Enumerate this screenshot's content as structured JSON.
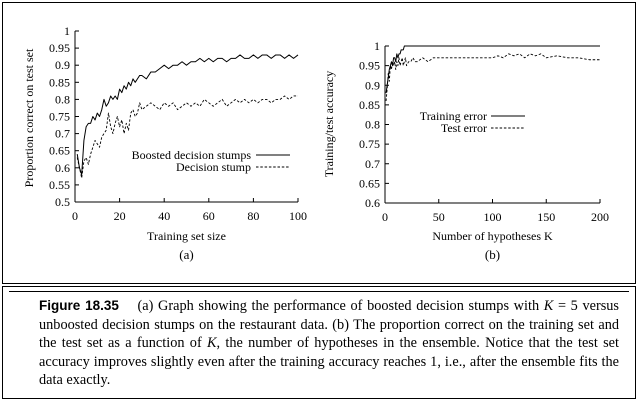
{
  "chart_data": [
    {
      "type": "line",
      "panel": "(a)",
      "xlabel": "Training set size",
      "ylabel": "Proportion correct on test set",
      "xlim": [
        0,
        100
      ],
      "ylim": [
        0.5,
        1.0
      ],
      "xticks": [
        0,
        20,
        40,
        60,
        80,
        100
      ],
      "yticks": [
        0.5,
        0.55,
        0.6,
        0.65,
        0.7,
        0.75,
        0.8,
        0.85,
        0.9,
        0.95,
        1
      ],
      "legend_position": "right-middle",
      "series": [
        {
          "name": "Boosted decision stumps",
          "style": "solid",
          "x": [
            1,
            2,
            3,
            4,
            5,
            6,
            7,
            8,
            9,
            10,
            11,
            12,
            13,
            14,
            15,
            16,
            17,
            18,
            19,
            20,
            21,
            22,
            23,
            24,
            25,
            26,
            27,
            28,
            29,
            30,
            32,
            34,
            36,
            38,
            40,
            42,
            44,
            46,
            48,
            50,
            52,
            54,
            56,
            58,
            60,
            62,
            64,
            66,
            68,
            70,
            72,
            74,
            76,
            78,
            80,
            82,
            84,
            86,
            88,
            90,
            92,
            94,
            96,
            98,
            100
          ],
          "values": [
            0.64,
            0.6,
            0.58,
            0.68,
            0.72,
            0.73,
            0.73,
            0.75,
            0.74,
            0.76,
            0.75,
            0.77,
            0.8,
            0.78,
            0.79,
            0.81,
            0.8,
            0.81,
            0.8,
            0.83,
            0.82,
            0.84,
            0.83,
            0.85,
            0.84,
            0.86,
            0.85,
            0.86,
            0.87,
            0.87,
            0.86,
            0.88,
            0.88,
            0.89,
            0.9,
            0.89,
            0.9,
            0.9,
            0.91,
            0.9,
            0.91,
            0.91,
            0.92,
            0.91,
            0.92,
            0.91,
            0.92,
            0.92,
            0.91,
            0.92,
            0.92,
            0.93,
            0.92,
            0.92,
            0.93,
            0.92,
            0.93,
            0.93,
            0.92,
            0.93,
            0.93,
            0.92,
            0.93,
            0.92,
            0.93
          ]
        },
        {
          "name": "Decision stump",
          "style": "dashed",
          "x": [
            1,
            2,
            3,
            4,
            5,
            6,
            7,
            8,
            9,
            10,
            11,
            12,
            13,
            14,
            15,
            16,
            17,
            18,
            19,
            20,
            21,
            22,
            23,
            24,
            25,
            26,
            27,
            28,
            29,
            30,
            32,
            34,
            36,
            38,
            40,
            42,
            44,
            46,
            48,
            50,
            52,
            54,
            56,
            58,
            60,
            62,
            64,
            66,
            68,
            70,
            72,
            74,
            76,
            78,
            80,
            82,
            84,
            86,
            88,
            90,
            92,
            94,
            96,
            98,
            100
          ],
          "values": [
            0.63,
            0.6,
            0.57,
            0.62,
            0.63,
            0.61,
            0.64,
            0.66,
            0.68,
            0.67,
            0.66,
            0.69,
            0.7,
            0.71,
            0.76,
            0.72,
            0.7,
            0.73,
            0.75,
            0.72,
            0.74,
            0.7,
            0.73,
            0.71,
            0.76,
            0.77,
            0.75,
            0.76,
            0.79,
            0.77,
            0.78,
            0.79,
            0.78,
            0.77,
            0.79,
            0.78,
            0.79,
            0.77,
            0.78,
            0.79,
            0.78,
            0.79,
            0.78,
            0.8,
            0.79,
            0.78,
            0.79,
            0.8,
            0.78,
            0.79,
            0.8,
            0.79,
            0.8,
            0.79,
            0.8,
            0.79,
            0.8,
            0.8,
            0.79,
            0.8,
            0.8,
            0.81,
            0.8,
            0.81,
            0.81
          ]
        }
      ]
    },
    {
      "type": "line",
      "panel": "(b)",
      "xlabel": "Number of hypotheses K",
      "ylabel": "Training/test accuracy",
      "xlim": [
        0,
        200
      ],
      "ylim": [
        0.6,
        1.0
      ],
      "xticks": [
        0,
        50,
        100,
        150,
        200
      ],
      "yticks": [
        0.6,
        0.65,
        0.7,
        0.75,
        0.8,
        0.85,
        0.9,
        0.95,
        1
      ],
      "legend_position": "right-middle",
      "series": [
        {
          "name": "Training error",
          "style": "solid",
          "x": [
            1,
            2,
            3,
            4,
            5,
            6,
            7,
            8,
            9,
            10,
            11,
            12,
            13,
            14,
            15,
            16,
            17,
            18,
            19,
            20,
            200
          ],
          "values": [
            0.88,
            0.9,
            0.92,
            0.94,
            0.95,
            0.96,
            0.95,
            0.97,
            0.97,
            0.96,
            0.98,
            0.97,
            0.98,
            0.98,
            0.99,
            0.99,
            0.99,
            1.0,
            1.0,
            1.0,
            1.0
          ]
        },
        {
          "name": "Test error",
          "style": "dashed",
          "x": [
            1,
            2,
            3,
            4,
            5,
            6,
            7,
            8,
            9,
            10,
            11,
            12,
            13,
            14,
            15,
            16,
            17,
            18,
            19,
            20,
            22,
            24,
            26,
            28,
            30,
            35,
            40,
            45,
            50,
            60,
            70,
            80,
            90,
            100,
            105,
            110,
            115,
            120,
            125,
            130,
            135,
            140,
            145,
            150,
            160,
            170,
            180,
            190,
            200
          ],
          "values": [
            0.86,
            0.89,
            0.93,
            0.91,
            0.95,
            0.94,
            0.96,
            0.95,
            0.96,
            0.94,
            0.96,
            0.95,
            0.97,
            0.95,
            0.96,
            0.97,
            0.95,
            0.96,
            0.97,
            0.95,
            0.96,
            0.96,
            0.97,
            0.96,
            0.96,
            0.97,
            0.96,
            0.97,
            0.97,
            0.97,
            0.97,
            0.97,
            0.97,
            0.97,
            0.975,
            0.97,
            0.98,
            0.975,
            0.98,
            0.97,
            0.98,
            0.975,
            0.98,
            0.97,
            0.975,
            0.97,
            0.97,
            0.965,
            0.965
          ]
        }
      ]
    }
  ],
  "caption": {
    "label": "Figure 18.35",
    "text": "(a) Graph showing the performance of boosted decision stumps with K = 5 versus unboosted decision stumps on the restaurant data. (b) The proportion correct on the training set and the test set as a function of K, the number of hypotheses in the ensemble. Notice that the test set accuracy improves slightly even after the training accuracy reaches 1, i.e., after the ensemble fits the data exactly."
  }
}
